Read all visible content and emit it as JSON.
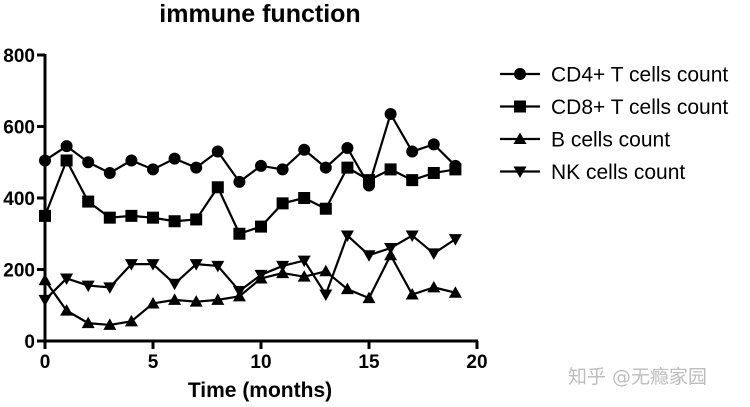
{
  "chart_data": {
    "type": "line",
    "title": "immune function",
    "xlabel": "Time (months)",
    "ylabel": "",
    "xlim": [
      0,
      20
    ],
    "ylim": [
      0,
      800
    ],
    "x_ticks": [
      0,
      5,
      10,
      15,
      20
    ],
    "y_ticks": [
      0,
      200,
      400,
      600,
      800
    ],
    "grid": false,
    "legend_position": "top-right",
    "x": [
      0,
      1,
      2,
      3,
      4,
      5,
      6,
      7,
      8,
      9,
      10,
      11,
      12,
      13,
      14,
      15,
      16,
      17,
      18,
      19
    ],
    "series": [
      {
        "name": "CD4+ T cells count",
        "marker": "circle",
        "values": [
          505,
          545,
          500,
          470,
          505,
          480,
          510,
          485,
          530,
          445,
          490,
          480,
          535,
          485,
          540,
          435,
          635,
          530,
          550,
          490
        ]
      },
      {
        "name": "CD8+ T cells count",
        "marker": "square",
        "values": [
          350,
          505,
          390,
          345,
          350,
          345,
          335,
          340,
          430,
          300,
          320,
          385,
          400,
          370,
          485,
          450,
          480,
          450,
          470,
          480
        ]
      },
      {
        "name": "B cells count",
        "marker": "triangle-up",
        "values": [
          170,
          85,
          50,
          45,
          55,
          105,
          115,
          110,
          115,
          125,
          175,
          190,
          180,
          195,
          145,
          120,
          240,
          130,
          150,
          135
        ]
      },
      {
        "name": "NK cells count",
        "marker": "triangle-down",
        "values": [
          115,
          175,
          155,
          150,
          215,
          215,
          160,
          215,
          210,
          140,
          185,
          210,
          225,
          130,
          295,
          240,
          260,
          295,
          245,
          285
        ]
      }
    ]
  },
  "watermark": {
    "text": "知乎 @无瘾家园"
  }
}
